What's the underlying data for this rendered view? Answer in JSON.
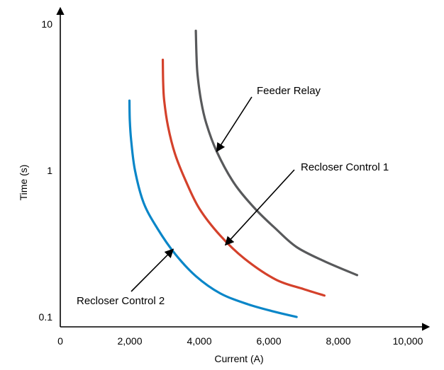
{
  "chart_data": {
    "type": "line",
    "xlabel": "Current (A)",
    "ylabel": "Time (s)",
    "xlim": [
      0,
      10000
    ],
    "ylim": [
      0.1,
      10
    ],
    "y_scale": "log",
    "grid": false,
    "x_ticks": [
      {
        "value": 0,
        "label": "0"
      },
      {
        "value": 2000,
        "label": "2,000"
      },
      {
        "value": 4000,
        "label": "4,000"
      },
      {
        "value": 6000,
        "label": "6,000"
      },
      {
        "value": 8000,
        "label": "8,000"
      },
      {
        "value": 10000,
        "label": "10,000"
      }
    ],
    "y_ticks": [
      {
        "value": 0.1,
        "label": "0.1"
      },
      {
        "value": 1,
        "label": "1"
      },
      {
        "value": 10,
        "label": "10"
      }
    ],
    "series": [
      {
        "name": "Feeder Relay",
        "color": "#58595b",
        "points": [
          [
            3900,
            9.0
          ],
          [
            3920,
            6.0
          ],
          [
            3950,
            4.5
          ],
          [
            4050,
            3.0
          ],
          [
            4200,
            2.1
          ],
          [
            4500,
            1.35
          ],
          [
            5000,
            0.82
          ],
          [
            5600,
            0.55
          ],
          [
            6200,
            0.4
          ],
          [
            6800,
            0.3
          ],
          [
            7600,
            0.24
          ],
          [
            8540,
            0.193
          ]
        ]
      },
      {
        "name": "Recloser Control 1",
        "color": "#d4412b",
        "points": [
          [
            2950,
            5.7
          ],
          [
            2960,
            4.0
          ],
          [
            2990,
            3.0
          ],
          [
            3100,
            2.0
          ],
          [
            3300,
            1.3
          ],
          [
            3600,
            0.86
          ],
          [
            4000,
            0.55
          ],
          [
            4600,
            0.36
          ],
          [
            5300,
            0.25
          ],
          [
            6200,
            0.18
          ],
          [
            7000,
            0.155
          ],
          [
            7600,
            0.14
          ]
        ]
      },
      {
        "name": "Recloser Control 2",
        "color": "#0a86c8",
        "points": [
          [
            1990,
            3.0
          ],
          [
            2000,
            2.2
          ],
          [
            2040,
            1.6
          ],
          [
            2150,
            1.0
          ],
          [
            2400,
            0.6
          ],
          [
            2800,
            0.4
          ],
          [
            3300,
            0.27
          ],
          [
            3900,
            0.19
          ],
          [
            4600,
            0.145
          ],
          [
            5400,
            0.122
          ],
          [
            6200,
            0.108
          ],
          [
            6800,
            0.1
          ]
        ]
      }
    ],
    "annotations": [
      {
        "text": "Feeder Relay",
        "series": "Feeder Relay",
        "at": [
          4500,
          1.35
        ]
      },
      {
        "text": "Recloser Control 1",
        "series": "Recloser Control 1",
        "at": [
          4750,
          0.31
        ]
      },
      {
        "text": "Recloser Control 2",
        "series": "Recloser Control 2",
        "at": [
          3250,
          0.29
        ]
      }
    ]
  }
}
